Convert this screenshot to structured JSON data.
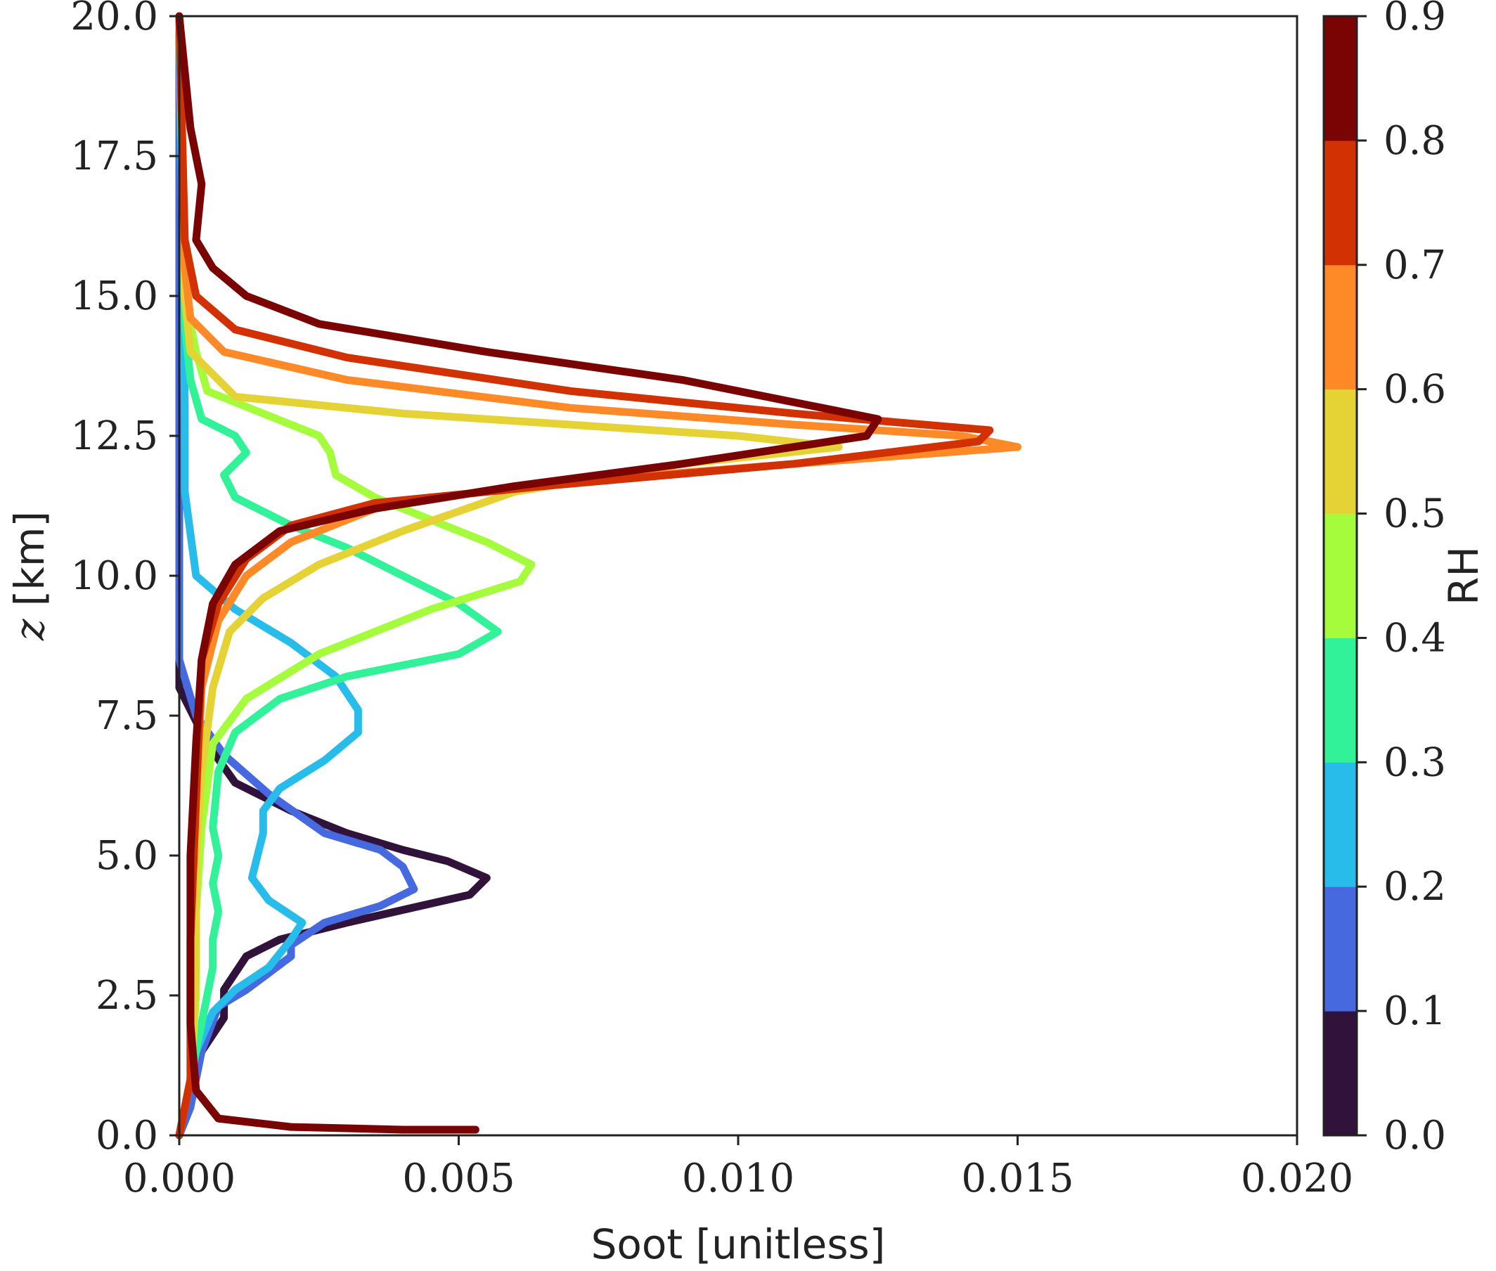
{
  "chart_data": {
    "type": "line",
    "title": "",
    "xlabel": "Soot [unitless]",
    "ylabel": "z [km]",
    "ylabel_var": "z",
    "ylabel_unit": "[km]",
    "xlim": [
      0,
      0.02
    ],
    "ylim": [
      0,
      20
    ],
    "x_ticks": [
      "0.000",
      "0.005",
      "0.010",
      "0.015",
      "0.020"
    ],
    "y_ticks": [
      "0.0",
      "2.5",
      "5.0",
      "7.5",
      "10.0",
      "12.5",
      "15.0",
      "17.5",
      "20.0"
    ],
    "grid": false,
    "colorbar": {
      "label": "RH",
      "range": [
        0,
        0.9
      ],
      "ticks": [
        "0.0",
        "0.1",
        "0.2",
        "0.3",
        "0.4",
        "0.5",
        "0.6",
        "0.7",
        "0.8",
        "0.9"
      ],
      "colors": [
        "#30123b",
        "#4669e0",
        "#28bceb",
        "#31f199",
        "#a4fc3c",
        "#e5d335",
        "#fe8a27",
        "#d23104",
        "#7a0403"
      ]
    },
    "series": [
      {
        "rh": 0.05,
        "color": "#30123b",
        "points": [
          [
            0.0,
            20
          ],
          [
            0.0,
            8.0
          ],
          [
            0.0005,
            7.0
          ],
          [
            0.001,
            6.3
          ],
          [
            0.002,
            5.8
          ],
          [
            0.003,
            5.4
          ],
          [
            0.004,
            5.1
          ],
          [
            0.0048,
            4.9
          ],
          [
            0.0055,
            4.6
          ],
          [
            0.0052,
            4.3
          ],
          [
            0.003,
            3.8
          ],
          [
            0.0018,
            3.5
          ],
          [
            0.0012,
            3.2
          ],
          [
            0.0008,
            2.6
          ],
          [
            0.0008,
            2.1
          ],
          [
            0.0004,
            1.5
          ],
          [
            0.0002,
            0.8
          ],
          [
            0.0,
            0
          ]
        ]
      },
      {
        "rh": 0.15,
        "color": "#4669e0",
        "points": [
          [
            0.0,
            20
          ],
          [
            0.0,
            8.5
          ],
          [
            0.0003,
            7.5
          ],
          [
            0.0008,
            6.8
          ],
          [
            0.0016,
            6.1
          ],
          [
            0.0026,
            5.4
          ],
          [
            0.0036,
            5.1
          ],
          [
            0.004,
            4.8
          ],
          [
            0.0042,
            4.4
          ],
          [
            0.0036,
            4.1
          ],
          [
            0.0026,
            3.8
          ],
          [
            0.002,
            3.4
          ],
          [
            0.002,
            3.2
          ],
          [
            0.0016,
            2.9
          ],
          [
            0.0012,
            2.6
          ],
          [
            0.0007,
            2.3
          ],
          [
            0.0004,
            1.5
          ],
          [
            0.0002,
            0.5
          ],
          [
            0.0,
            0
          ]
        ]
      },
      {
        "rh": 0.25,
        "color": "#28bceb",
        "points": [
          [
            0.0,
            20
          ],
          [
            0.0001,
            13.0
          ],
          [
            0.0001,
            11.5
          ],
          [
            0.0003,
            10.0
          ],
          [
            0.001,
            9.4
          ],
          [
            0.002,
            8.8
          ],
          [
            0.0028,
            8.2
          ],
          [
            0.0032,
            7.6
          ],
          [
            0.0032,
            7.2
          ],
          [
            0.0026,
            6.7
          ],
          [
            0.0018,
            6.2
          ],
          [
            0.0015,
            5.8
          ],
          [
            0.0015,
            5.4
          ],
          [
            0.0014,
            5.0
          ],
          [
            0.0013,
            4.6
          ],
          [
            0.0016,
            4.2
          ],
          [
            0.0022,
            3.8
          ],
          [
            0.002,
            3.5
          ],
          [
            0.0016,
            3.0
          ],
          [
            0.001,
            2.6
          ],
          [
            0.0006,
            2.2
          ],
          [
            0.0003,
            1.5
          ],
          [
            0.0001,
            0.5
          ],
          [
            0.0,
            0
          ]
        ]
      },
      {
        "rh": 0.35,
        "color": "#31f199",
        "points": [
          [
            0.0,
            20
          ],
          [
            0.0001,
            14.5
          ],
          [
            0.0002,
            13.5
          ],
          [
            0.0004,
            12.8
          ],
          [
            0.001,
            12.5
          ],
          [
            0.0012,
            12.2
          ],
          [
            0.0008,
            11.8
          ],
          [
            0.001,
            11.4
          ],
          [
            0.002,
            10.9
          ],
          [
            0.003,
            10.5
          ],
          [
            0.004,
            10.0
          ],
          [
            0.005,
            9.5
          ],
          [
            0.0057,
            9.0
          ],
          [
            0.005,
            8.6
          ],
          [
            0.003,
            8.2
          ],
          [
            0.0018,
            7.8
          ],
          [
            0.001,
            7.2
          ],
          [
            0.0007,
            6.5
          ],
          [
            0.0006,
            5.5
          ],
          [
            0.0007,
            5.0
          ],
          [
            0.0006,
            4.5
          ],
          [
            0.0007,
            4.0
          ],
          [
            0.0006,
            3.5
          ],
          [
            0.0006,
            3.0
          ],
          [
            0.0004,
            2.0
          ],
          [
            0.0002,
            1.0
          ],
          [
            0.0,
            0
          ]
        ]
      },
      {
        "rh": 0.45,
        "color": "#a4fc3c",
        "points": [
          [
            0.0,
            20
          ],
          [
            0.0001,
            15.0
          ],
          [
            0.0003,
            14.0
          ],
          [
            0.0005,
            13.3
          ],
          [
            0.0015,
            12.9
          ],
          [
            0.0025,
            12.5
          ],
          [
            0.0027,
            12.2
          ],
          [
            0.0028,
            11.8
          ],
          [
            0.0035,
            11.4
          ],
          [
            0.0045,
            11.0
          ],
          [
            0.0055,
            10.6
          ],
          [
            0.0063,
            10.2
          ],
          [
            0.0061,
            9.9
          ],
          [
            0.0045,
            9.4
          ],
          [
            0.0025,
            8.6
          ],
          [
            0.0012,
            7.8
          ],
          [
            0.0006,
            7.0
          ],
          [
            0.0004,
            5.5
          ],
          [
            0.0003,
            4.0
          ],
          [
            0.0003,
            2.5
          ],
          [
            0.0002,
            1.0
          ],
          [
            0.0,
            0
          ]
        ]
      },
      {
        "rh": 0.55,
        "color": "#e5d335",
        "points": [
          [
            0.0,
            20
          ],
          [
            0.0001,
            15.0
          ],
          [
            0.0002,
            14.0
          ],
          [
            0.001,
            13.2
          ],
          [
            0.004,
            12.9
          ],
          [
            0.007,
            12.7
          ],
          [
            0.01,
            12.5
          ],
          [
            0.0118,
            12.3
          ],
          [
            0.009,
            12.0
          ],
          [
            0.006,
            11.5
          ],
          [
            0.004,
            10.8
          ],
          [
            0.0025,
            10.2
          ],
          [
            0.0015,
            9.6
          ],
          [
            0.0009,
            9.0
          ],
          [
            0.0006,
            8.0
          ],
          [
            0.0004,
            6.5
          ],
          [
            0.0003,
            5.0
          ],
          [
            0.0003,
            3.0
          ],
          [
            0.0002,
            1.0
          ],
          [
            0.0,
            0
          ]
        ]
      },
      {
        "rh": 0.65,
        "color": "#fe8a27",
        "points": [
          [
            0.0,
            20
          ],
          [
            0.0001,
            15.5
          ],
          [
            0.0002,
            14.6
          ],
          [
            0.0008,
            14.0
          ],
          [
            0.003,
            13.5
          ],
          [
            0.007,
            13.0
          ],
          [
            0.011,
            12.7
          ],
          [
            0.014,
            12.5
          ],
          [
            0.015,
            12.3
          ],
          [
            0.011,
            12.0
          ],
          [
            0.006,
            11.6
          ],
          [
            0.0035,
            11.2
          ],
          [
            0.002,
            10.6
          ],
          [
            0.0012,
            10.0
          ],
          [
            0.0007,
            9.2
          ],
          [
            0.0004,
            8.0
          ],
          [
            0.0003,
            6.0
          ],
          [
            0.0002,
            3.5
          ],
          [
            0.0002,
            1.0
          ],
          [
            0.0,
            0
          ]
        ]
      },
      {
        "rh": 0.75,
        "color": "#d23104",
        "points": [
          [
            0.0,
            20
          ],
          [
            0.0001,
            16.0
          ],
          [
            0.0003,
            15.0
          ],
          [
            0.001,
            14.4
          ],
          [
            0.003,
            13.9
          ],
          [
            0.007,
            13.3
          ],
          [
            0.011,
            12.9
          ],
          [
            0.0145,
            12.6
          ],
          [
            0.0143,
            12.4
          ],
          [
            0.011,
            12.0
          ],
          [
            0.0065,
            11.6
          ],
          [
            0.0035,
            11.3
          ],
          [
            0.002,
            10.9
          ],
          [
            0.0012,
            10.3
          ],
          [
            0.0007,
            9.5
          ],
          [
            0.0004,
            8.5
          ],
          [
            0.0003,
            6.0
          ],
          [
            0.0002,
            3.5
          ],
          [
            0.0002,
            1.0
          ],
          [
            0.0,
            0
          ]
        ]
      },
      {
        "rh": 0.85,
        "color": "#7a0403",
        "points": [
          [
            0.0,
            20
          ],
          [
            0.0002,
            18.0
          ],
          [
            0.0004,
            17.0
          ],
          [
            0.0003,
            16.0
          ],
          [
            0.0006,
            15.5
          ],
          [
            0.0012,
            15.0
          ],
          [
            0.0025,
            14.5
          ],
          [
            0.0055,
            14.0
          ],
          [
            0.009,
            13.5
          ],
          [
            0.0115,
            13.0
          ],
          [
            0.0125,
            12.8
          ],
          [
            0.0123,
            12.5
          ],
          [
            0.009,
            12.0
          ],
          [
            0.006,
            11.6
          ],
          [
            0.0035,
            11.2
          ],
          [
            0.0018,
            10.8
          ],
          [
            0.001,
            10.2
          ],
          [
            0.0006,
            9.5
          ],
          [
            0.0004,
            8.5
          ],
          [
            0.0003,
            7.0
          ],
          [
            0.0002,
            5.0
          ],
          [
            0.0002,
            2.0
          ],
          [
            0.0003,
            0.8
          ],
          [
            0.0007,
            0.3
          ],
          [
            0.002,
            0.15
          ],
          [
            0.004,
            0.1
          ],
          [
            0.0053,
            0.1
          ]
        ]
      }
    ]
  }
}
